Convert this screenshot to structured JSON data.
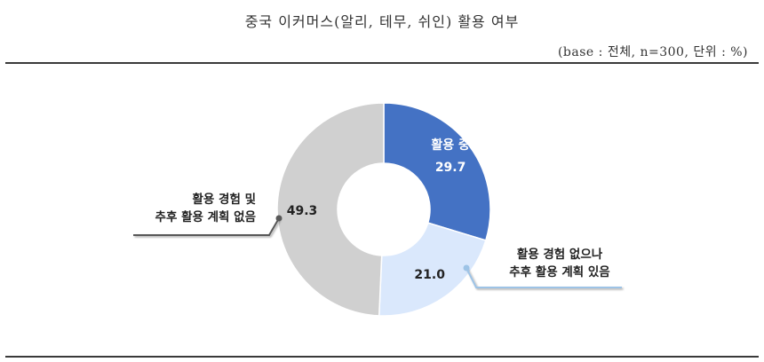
{
  "title": "중국 이커머스(알리, 테무, 쉬인) 활용 여부",
  "subtitle": "(base : 전체, n=300, 단위 : %)",
  "chart_data": {
    "type": "pie",
    "donut": true,
    "unit": "%",
    "slices": [
      {
        "name_lines": [
          "활용 중"
        ],
        "value": 29.7,
        "value_label": "29.7",
        "color": "#4472C4",
        "label_color": "#ffffff"
      },
      {
        "name_lines": [
          "활용 경험 없으나",
          "추후 활용 계획 있음"
        ],
        "value": 21.0,
        "value_label": "21.0",
        "color": "#DAE8FC",
        "label_color": "#222222"
      },
      {
        "name_lines": [
          "활용 경험 및",
          "추후 활용 계획 없음"
        ],
        "value": 49.3,
        "value_label": "49.3",
        "color": "#D0D0D0",
        "label_color": "#222222"
      }
    ]
  }
}
